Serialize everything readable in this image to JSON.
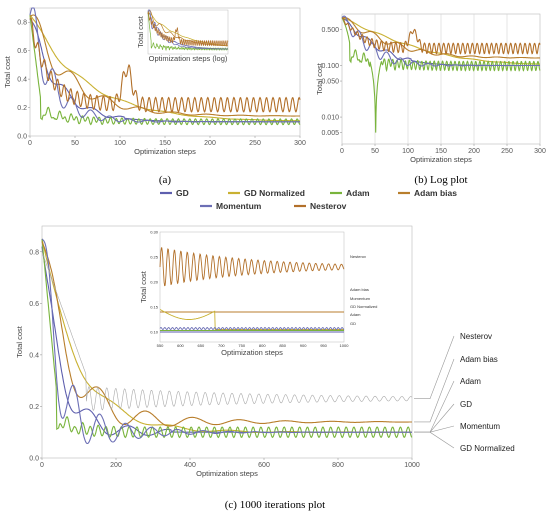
{
  "legend": [
    {
      "name": "GD",
      "color": "#5e5fae"
    },
    {
      "name": "GD Normalized",
      "color": "#c9b132"
    },
    {
      "name": "Adam",
      "color": "#79b43c"
    },
    {
      "name": "Adam bias",
      "color": "#b87e2c"
    },
    {
      "name": "Momentum",
      "color": "#6c6fb5"
    },
    {
      "name": "Nesterov",
      "color": "#b2702a"
    }
  ],
  "chart_data": [
    {
      "id": "a",
      "type": "line",
      "caption": "(a)",
      "xlabel": "Optimization steps",
      "ylabel": "Total cost",
      "xlim": [
        0,
        300
      ],
      "ylim": [
        0,
        0.9
      ],
      "xticks": [
        "0",
        "50",
        "100",
        "150",
        "200",
        "250",
        "300"
      ],
      "yticks": [
        "0.0",
        "0.2",
        "0.4",
        "0.6",
        "0.8"
      ],
      "inset": {
        "xlabel": "Optimization steps (log)",
        "ylabel": "Total cost"
      }
    },
    {
      "id": "b",
      "type": "line",
      "caption": "(b) Log plot",
      "xlabel": "Optimization steps",
      "ylabel": "Total cost",
      "xlim": [
        0,
        300
      ],
      "ylim": [
        0.003,
        1
      ],
      "yscale": "log",
      "xticks": [
        "0",
        "50",
        "100",
        "150",
        "200",
        "250",
        "300"
      ],
      "yticks": [
        "0.005",
        "0.010",
        "0.050",
        "0.100",
        "0.500"
      ]
    },
    {
      "id": "c",
      "type": "line",
      "caption": "(c) 1000 iterations plot",
      "xlabel": "Optimization steps",
      "ylabel": "Total cost",
      "xlim": [
        0,
        1000
      ],
      "ylim": [
        0,
        0.9
      ],
      "xticks": [
        "0",
        "200",
        "400",
        "600",
        "800",
        "1000"
      ],
      "yticks": [
        "0.0",
        "0.2",
        "0.4",
        "0.6",
        "0.8"
      ],
      "right_labels": [
        "Nesterov",
        "Adam bias",
        "Adam",
        "GD",
        "Momentum",
        "GD Normalized"
      ],
      "inset": {
        "xlabel": "Optimization steps",
        "ylabel": "Total cost",
        "xticks": [
          "550",
          "600",
          "650",
          "700",
          "750",
          "800",
          "850",
          "900",
          "950",
          "1000"
        ],
        "yticks": [
          "0.10",
          "0.15",
          "0.20",
          "0.25",
          "0.30"
        ],
        "labels": [
          "Nesterov",
          "Adam bias",
          "Momentum",
          "GD Normalized",
          "Adam",
          "GD"
        ]
      },
      "final_values": {
        "Nesterov": 0.23,
        "Adam bias": 0.14,
        "Adam": 0.1,
        "GD": 0.1,
        "Momentum": 0.1,
        "GD Normalized": 0.1
      }
    }
  ]
}
